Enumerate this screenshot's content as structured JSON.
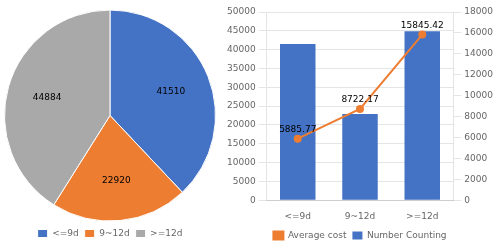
{
  "chart_data": [
    {
      "type": "pie",
      "categories": [
        "<=9d",
        "9~12d",
        ">=12d"
      ],
      "values": [
        41510,
        22920,
        44884
      ],
      "colors": [
        "#4472C4",
        "#ED7D31",
        "#A9A9A9"
      ],
      "data_labels": true,
      "legend": "bottom"
    },
    {
      "type": "bar",
      "categories": [
        "<=9d",
        "9~12d",
        ">=12d"
      ],
      "series": [
        {
          "name": "Number Counting",
          "type": "bar",
          "color": "#4472C4",
          "values": [
            41510,
            22920,
            44884
          ]
        },
        {
          "name": "Average cost",
          "type": "line",
          "axis": "y2",
          "color": "#ED7D31",
          "marker": "circle",
          "line_style": "solid",
          "data_labels": true,
          "values": [
            5885.77,
            8722.17,
            15845.42
          ]
        }
      ],
      "ylim": [
        0,
        50000
      ],
      "yticks": [
        0,
        5000,
        10000,
        15000,
        20000,
        25000,
        30000,
        35000,
        40000,
        45000,
        50000
      ],
      "y2lim": [
        0,
        18000
      ],
      "y2ticks": [
        0,
        2000,
        4000,
        6000,
        8000,
        10000,
        12000,
        14000,
        16000,
        18000
      ],
      "grid": true,
      "legend": "bottom"
    }
  ]
}
